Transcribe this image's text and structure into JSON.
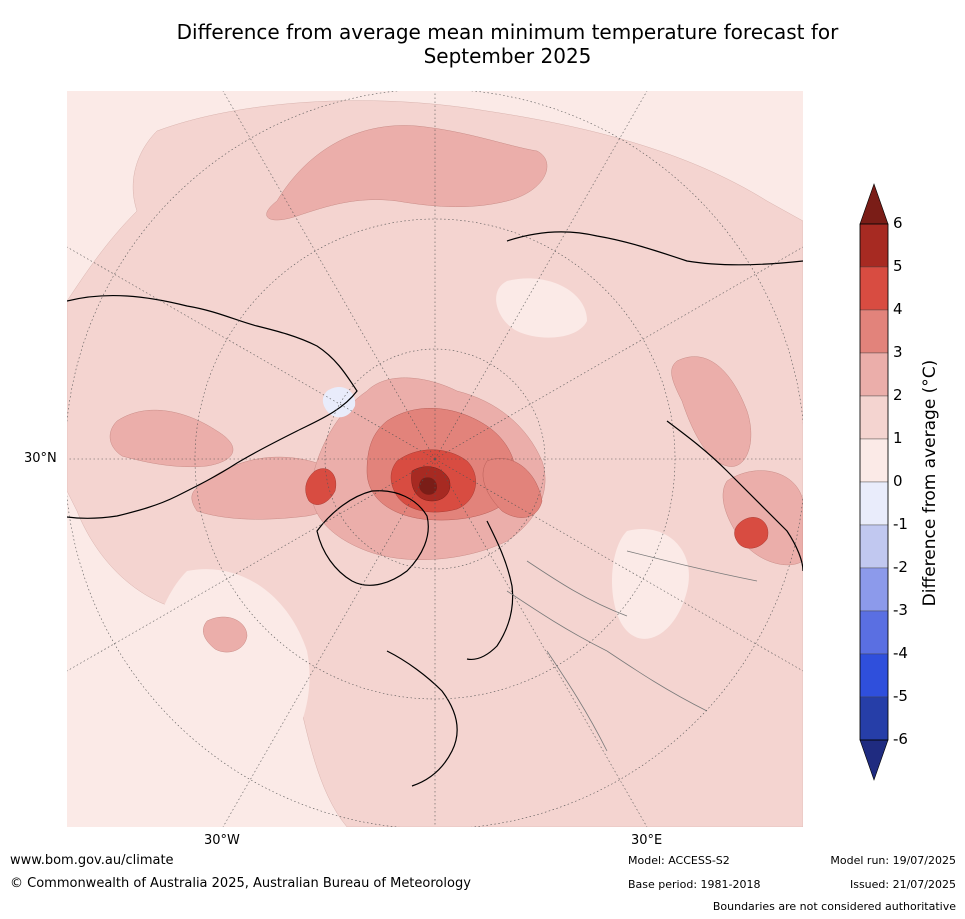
{
  "title_line1": "Difference from average mean minimum temperature forecast for",
  "title_line2": "September 2025",
  "map": {
    "projection": "north-polar-stereographic",
    "lat_label": "30°N",
    "lon_labels": [
      "30°W",
      "30°E"
    ],
    "colors": {
      "anomaly_0_1": "#fbeae7",
      "anomaly_1_2": "#f4d4d0",
      "anomaly_2_3": "#ebaeaa",
      "anomaly_3_4": "#e2837b",
      "anomaly_4_5": "#d84c41",
      "anomaly_5_6": "#a72a22",
      "anomaly_gt_6": "#7a1d17",
      "anomaly_neg_0_1": "#e9ecfb",
      "coastline": "#000000",
      "borders": "#7a7a7a",
      "graticule": "#555555"
    }
  },
  "colorbar": {
    "label": "Difference from average (°C)",
    "ticks": [
      "6",
      "5",
      "4",
      "3",
      "2",
      "1",
      "0",
      "-1",
      "-2",
      "-3",
      "-4",
      "-5",
      "-6"
    ],
    "colors_top_to_bottom": [
      "#7a1d17",
      "#a72a22",
      "#d84c41",
      "#e2837b",
      "#ebaeaa",
      "#f4d4d0",
      "#fbeae7",
      "#e9ecfb",
      "#c1c8f0",
      "#8c9aeb",
      "#5a6fe2",
      "#2f4fdc",
      "#263ea8",
      "#1f2b80"
    ]
  },
  "footer": {
    "website": "www.bom.gov.au/climate",
    "copyright": "© Commonwealth of Australia 2025, Australian Bureau of Meteorology",
    "model": "Model: ACCESS-S2",
    "base_period": "Base period: 1981-2018",
    "model_run": "Model run: 19/07/2025",
    "issued": "Issued: 21/07/2025",
    "disclaimer": "Boundaries are not considered authoritative"
  }
}
